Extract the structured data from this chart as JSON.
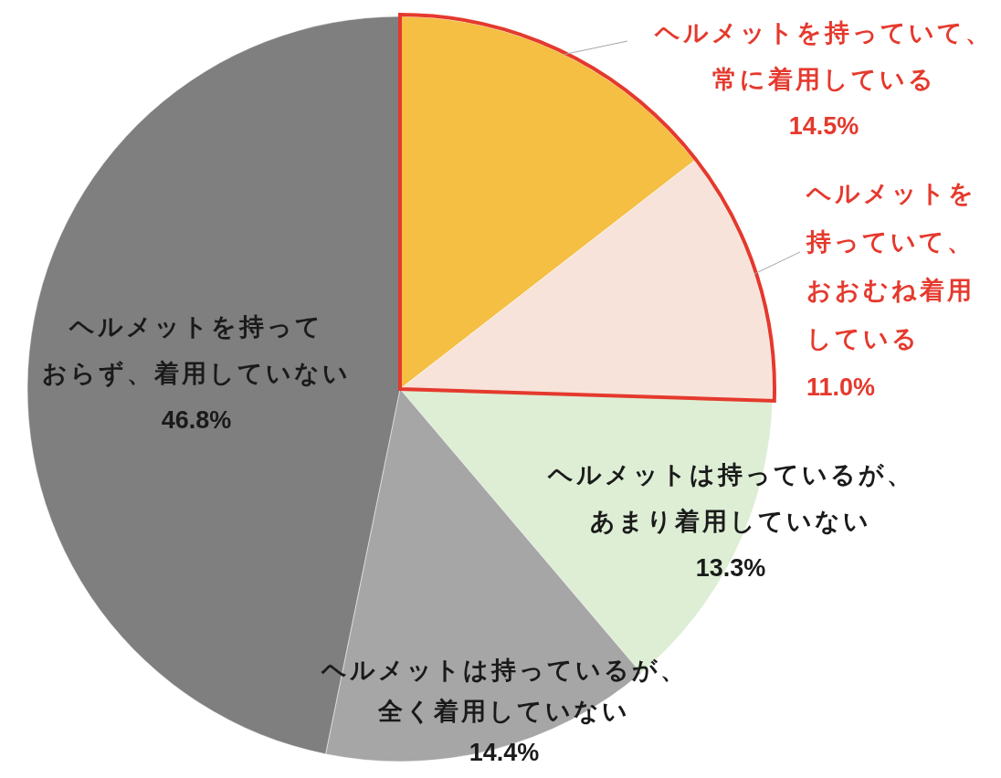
{
  "chart_data": {
    "type": "pie",
    "categories": [
      "ヘルメットを持っていて、常に着用している",
      "ヘルメットを持っていて、おおむね着用している",
      "ヘルメットは持っているが、あまり着用していない",
      "ヘルメットは持っているが、全く着用していない",
      "ヘルメットを持っておらず、着用していない"
    ],
    "values": [
      14.5,
      11.0,
      13.3,
      14.4,
      46.8
    ],
    "colors": [
      "#f4bf43",
      "#f7e3d9",
      "#ddeed4",
      "#a6a6a6",
      "#7f7f7f"
    ],
    "value_labels": [
      "14.5%",
      "11.0%",
      "13.3%",
      "14.4%",
      "46.8%"
    ]
  }
}
